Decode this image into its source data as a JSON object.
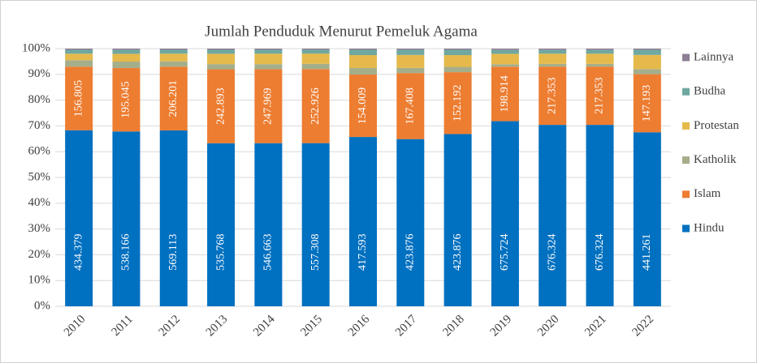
{
  "chart_data": {
    "type": "bar",
    "stacking": "percent",
    "title": "Jumlah Penduduk Menurut Pemeluk Agama",
    "categories": [
      "2010",
      "2011",
      "2012",
      "2013",
      "2014",
      "2015",
      "2016",
      "2017",
      "2018",
      "2019",
      "2020",
      "2021",
      "2022"
    ],
    "series": [
      {
        "name": "Hindu",
        "color": "#0070c0",
        "labels": true,
        "values": [
          434.379,
          538.166,
          569.113,
          535.768,
          546.663,
          557.308,
          417.593,
          423.876,
          423.876,
          675.724,
          676.324,
          676.324,
          441.261
        ]
      },
      {
        "name": "Islam",
        "color": "#ed7d31",
        "labels": true,
        "values": [
          156.805,
          195.045,
          206.201,
          242.893,
          247.969,
          252.926,
          154.009,
          167.408,
          152.192,
          198.914,
          217.353,
          217.353,
          147.193
        ]
      },
      {
        "name": "Katholik",
        "color": "#a5ae8a",
        "labels": false,
        "values": [
          16,
          20,
          17,
          17,
          17,
          18,
          16,
          13,
          13,
          9,
          10,
          10,
          13
        ]
      },
      {
        "name": "Protestan",
        "color": "#e5b94b",
        "labels": false,
        "values": [
          16,
          24,
          25,
          34,
          35,
          35,
          32,
          33,
          29,
          38,
          38,
          38,
          36
        ]
      },
      {
        "name": "Budha",
        "color": "#6fa8a0",
        "labels": false,
        "values": [
          9.6,
          12,
          12.5,
          13,
          13,
          13,
          13,
          13,
          13,
          14,
          14,
          14,
          13
        ]
      },
      {
        "name": "Lainnya",
        "color": "#8e7f94",
        "labels": false,
        "values": [
          3,
          4,
          4,
          4,
          4,
          4,
          3,
          3,
          3,
          5,
          5,
          5,
          3
        ]
      }
    ],
    "ylim": [
      0,
      100
    ],
    "yticks": [
      {
        "value": 0,
        "label": "0%"
      },
      {
        "value": 10,
        "label": "10%"
      },
      {
        "value": 20,
        "label": "20%"
      },
      {
        "value": 30,
        "label": "30%"
      },
      {
        "value": 40,
        "label": "40%"
      },
      {
        "value": 50,
        "label": "50%"
      },
      {
        "value": 60,
        "label": "60%"
      },
      {
        "value": 70,
        "label": "70%"
      },
      {
        "value": 80,
        "label": "80%"
      },
      {
        "value": 90,
        "label": "90%"
      },
      {
        "value": 100,
        "label": "100%"
      }
    ],
    "grid": true,
    "legend": "right"
  }
}
